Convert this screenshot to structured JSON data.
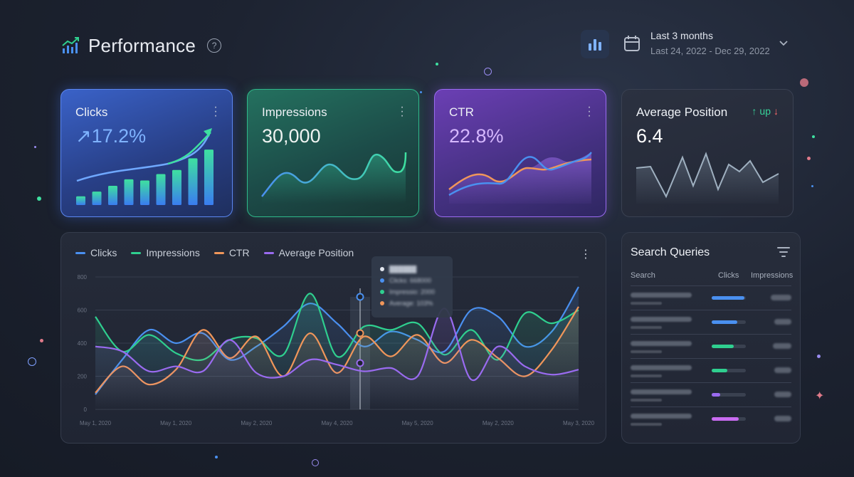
{
  "header": {
    "title": "Performance",
    "help_icon": "?",
    "date_range": "Last 3 months",
    "date_sub": "Last 24, 2022 - Dec 29, 2022"
  },
  "cards": {
    "clicks": {
      "label": "Clicks",
      "value": "↗17.2%",
      "bars": [
        0.15,
        0.23,
        0.33,
        0.44,
        0.42,
        0.53,
        0.6,
        0.8,
        0.95
      ]
    },
    "impressions": {
      "label": "Impressions",
      "value": "30,000"
    },
    "ctr": {
      "label": "CTR",
      "value": "22.8%"
    },
    "avg_position": {
      "label": "Average Position",
      "value": "6.4",
      "up": "up"
    }
  },
  "chart_data": {
    "type": "line",
    "series": [
      {
        "name": "Clicks",
        "color": "#4a90f0",
        "values": [
          90,
          300,
          480,
          400,
          460,
          300,
          380,
          500,
          640,
          520,
          380,
          470,
          420,
          350,
          600,
          560,
          380,
          470,
          740
        ]
      },
      {
        "name": "Impressions",
        "color": "#2fcf8f",
        "values": [
          560,
          350,
          450,
          340,
          300,
          420,
          430,
          330,
          700,
          320,
          500,
          480,
          520,
          330,
          480,
          300,
          580,
          520,
          600
        ]
      },
      {
        "name": "CTR",
        "color": "#f0965a",
        "values": [
          100,
          260,
          150,
          240,
          480,
          310,
          440,
          200,
          460,
          220,
          440,
          320,
          450,
          280,
          420,
          310,
          200,
          360,
          620
        ]
      },
      {
        "name": "Average Position",
        "color": "#9a6bf0",
        "values": [
          380,
          350,
          230,
          260,
          230,
          420,
          220,
          200,
          300,
          270,
          230,
          250,
          200,
          610,
          180,
          380,
          260,
          210,
          240
        ]
      }
    ],
    "y_ticks": [
      "800",
      "600",
      "400",
      "200",
      "0"
    ],
    "ylim": [
      0,
      800
    ],
    "x_ticks": [
      "May 1, 2020",
      "May 1, 2020",
      "May 2, 2020",
      "May 4, 2020",
      "May 5, 2020",
      "May 2, 2020",
      "May 3, 2020"
    ]
  },
  "tooltip": {
    "title": "██████",
    "rows": [
      {
        "label": "Clicks: 668000",
        "color": "#4a90f0"
      },
      {
        "label": "Impressio: 2000",
        "color": "#2fcf8f"
      },
      {
        "label": "Average: 103%",
        "color": "#f0965a"
      }
    ]
  },
  "queries": {
    "title": "Search Queries",
    "headers": {
      "search": "Search",
      "clicks": "Clicks",
      "impressions": "Impressions"
    },
    "rows": [
      {
        "bar": 0.95,
        "color": "#4a90f0",
        "imp": 0.9
      },
      {
        "bar": 0.75,
        "color": "#4a90f0",
        "imp": 0.75
      },
      {
        "bar": 0.65,
        "color": "#2fcf8f",
        "imp": 0.8
      },
      {
        "bar": 0.45,
        "color": "#2fcf8f",
        "imp": 0.75
      },
      {
        "bar": 0.25,
        "color": "#9a6bf0",
        "imp": 0.75
      },
      {
        "bar": 0.8,
        "color": "#c86bf0",
        "imp": 0.75
      }
    ]
  }
}
